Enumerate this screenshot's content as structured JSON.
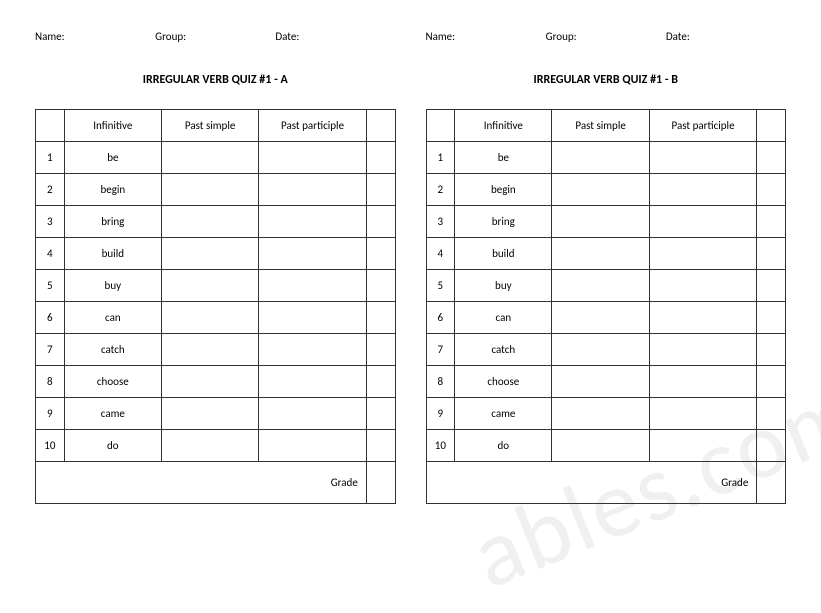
{
  "watermark": "ables.com",
  "header": {
    "name_label": "Name:",
    "group_label": "Group:",
    "date_label": "Date:"
  },
  "columns": {
    "num": "",
    "infinitive": "Infinitive",
    "past_simple": "Past simple",
    "past_participle": "Past participle",
    "end": ""
  },
  "grade_label": "Grade",
  "quiz_a": {
    "title": "IRREGULAR VERB QUIZ #1 - A",
    "rows": [
      {
        "n": "1",
        "inf": "be",
        "ps": "",
        "pp": ""
      },
      {
        "n": "2",
        "inf": "begin",
        "ps": "",
        "pp": ""
      },
      {
        "n": "3",
        "inf": "bring",
        "ps": "",
        "pp": ""
      },
      {
        "n": "4",
        "inf": "build",
        "ps": "",
        "pp": ""
      },
      {
        "n": "5",
        "inf": "buy",
        "ps": "",
        "pp": ""
      },
      {
        "n": "6",
        "inf": "can",
        "ps": "",
        "pp": ""
      },
      {
        "n": "7",
        "inf": "catch",
        "ps": "",
        "pp": ""
      },
      {
        "n": "8",
        "inf": "choose",
        "ps": "",
        "pp": ""
      },
      {
        "n": "9",
        "inf": "came",
        "ps": "",
        "pp": ""
      },
      {
        "n": "10",
        "inf": "do",
        "ps": "",
        "pp": ""
      }
    ]
  },
  "quiz_b": {
    "title": "IRREGULAR VERB QUIZ #1 - B",
    "rows": [
      {
        "n": "1",
        "inf": "be",
        "ps": "",
        "pp": ""
      },
      {
        "n": "2",
        "inf": "begin",
        "ps": "",
        "pp": ""
      },
      {
        "n": "3",
        "inf": "bring",
        "ps": "",
        "pp": ""
      },
      {
        "n": "4",
        "inf": "build",
        "ps": "",
        "pp": ""
      },
      {
        "n": "5",
        "inf": "buy",
        "ps": "",
        "pp": ""
      },
      {
        "n": "6",
        "inf": "can",
        "ps": "",
        "pp": ""
      },
      {
        "n": "7",
        "inf": "catch",
        "ps": "",
        "pp": ""
      },
      {
        "n": "8",
        "inf": "choose",
        "ps": "",
        "pp": ""
      },
      {
        "n": "9",
        "inf": "came",
        "ps": "",
        "pp": ""
      },
      {
        "n": "10",
        "inf": "do",
        "ps": "",
        "pp": ""
      }
    ]
  }
}
